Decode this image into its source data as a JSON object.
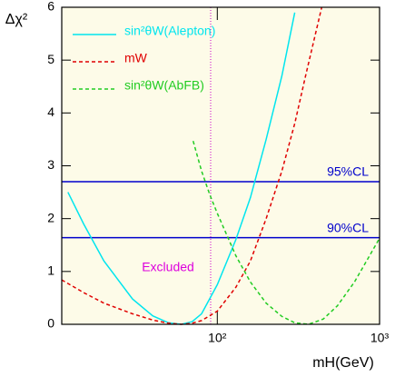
{
  "chart_data": {
    "type": "line",
    "x_label": "mH(GeV)",
    "y_label": "Δχ²",
    "xscale": "log",
    "xlim": [
      11,
      1000
    ],
    "ylim": [
      0,
      6
    ],
    "xticks": [
      {
        "value": 100,
        "label": "10²"
      },
      {
        "value": 1000,
        "label": "10³"
      }
    ],
    "yticks": [
      0,
      1,
      2,
      3,
      4,
      5,
      6
    ],
    "background": "#fdfbe8",
    "series": [
      {
        "name": "sin²θW(Alepton)",
        "color": "#00e5ee",
        "dash": "solid",
        "x": [
          12,
          15,
          20,
          30,
          40,
          50,
          60,
          70,
          80,
          100,
          130,
          160,
          200,
          250,
          300
        ],
        "values": [
          2.5,
          1.9,
          1.2,
          0.48,
          0.16,
          0.03,
          0,
          0.05,
          0.2,
          0.75,
          1.6,
          2.4,
          3.5,
          4.7,
          5.9
        ]
      },
      {
        "name": "mW",
        "color": "#e00000",
        "dash": "dashed",
        "x": [
          11,
          15,
          20,
          30,
          40,
          50,
          60,
          70,
          80,
          100,
          130,
          160,
          200,
          250,
          300,
          350,
          440
        ],
        "values": [
          0.84,
          0.6,
          0.4,
          0.2,
          0.08,
          0.02,
          0,
          0.02,
          0.07,
          0.25,
          0.7,
          1.2,
          2.0,
          2.9,
          3.8,
          4.7,
          6.0
        ]
      },
      {
        "name": "sin²θW(AbFB)",
        "color": "#22cc22",
        "dash": "dashed",
        "x": [
          71,
          80,
          90,
          100,
          130,
          160,
          200,
          250,
          300,
          365,
          450,
          550,
          700,
          850,
          1000
        ],
        "values": [
          3.47,
          2.9,
          2.45,
          2.1,
          1.3,
          0.8,
          0.4,
          0.15,
          0.03,
          0,
          0.1,
          0.35,
          0.8,
          1.25,
          1.63
        ]
      }
    ],
    "hlines": [
      {
        "value": 2.7,
        "label": "95%CL",
        "color": "#0000cc"
      },
      {
        "value": 1.64,
        "label": "90%CL",
        "color": "#0000cc"
      }
    ],
    "vline": {
      "value": 91,
      "color": "#cc00cc"
    },
    "annotation": {
      "text": "Excluded",
      "color": "#dd00dd"
    }
  }
}
